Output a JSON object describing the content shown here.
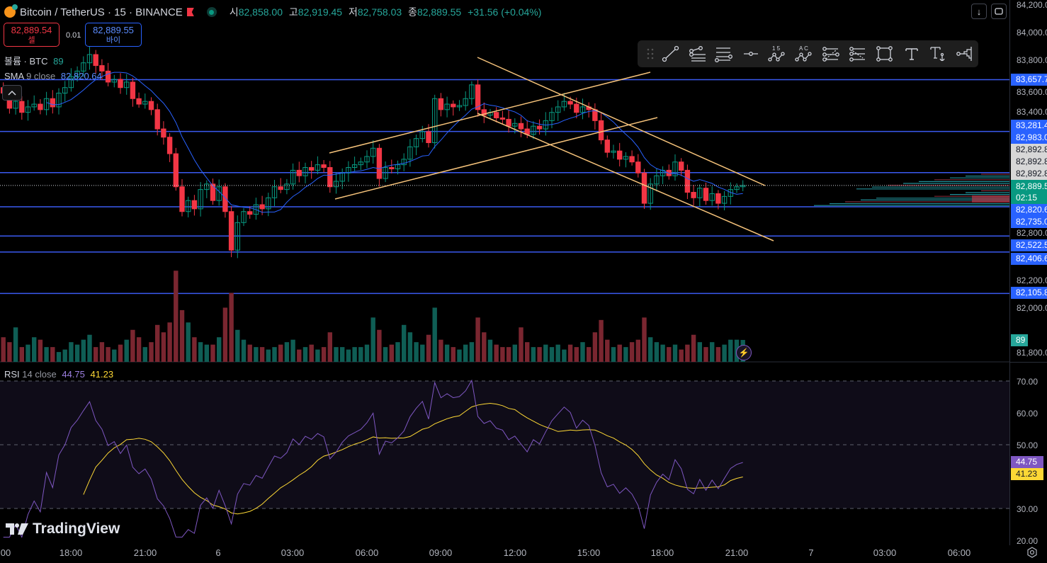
{
  "header": {
    "symbol": "Bitcoin / TetherUS · 15 · BINANCE",
    "ohlc": [
      {
        "k": "시",
        "v": "82,858.00"
      },
      {
        "k": "고",
        "v": "82,919.45"
      },
      {
        "k": "저",
        "v": "82,758.03"
      },
      {
        "k": "종",
        "v": "82,889.55"
      }
    ],
    "change": "+31.56 (+0.04%)"
  },
  "quote": {
    "sell_price": "82,889.54",
    "sell_label": "셀",
    "spread": "0.01",
    "buy_price": "82,889.55",
    "buy_label": "바이"
  },
  "indicators": {
    "volume_label": "볼륨 · BTC",
    "volume_value": "89",
    "sma_name": "SMA",
    "sma_params": "9 close",
    "sma_value": "82,820.64",
    "rsi_name": "RSI",
    "rsi_params": "14 close",
    "rsi_value": "44.75",
    "rsi_ma_value": "41.23"
  },
  "toolbar": {
    "tools": [
      "trend-line",
      "pitchfork",
      "parallel-channel",
      "horizontal-ray",
      "xabcd-pattern-15",
      "abcd-pattern",
      "fib-retracement",
      "fib-extension",
      "rectangle",
      "text",
      "anchored-text",
      "volume-profile"
    ],
    "labels_15": "1 5",
    "labels_ac": "A C"
  },
  "price_axis": {
    "ticks": [
      "84,200.0",
      "84,000.0",
      "83,800.0",
      "83,600.0",
      "83,400.0",
      "82,800.0",
      "82,200.0",
      "82,000.0",
      "81,800.0"
    ],
    "tick_values": [
      84200,
      84000,
      83800,
      83600,
      83400,
      82800,
      82200,
      82000,
      81800
    ],
    "labels": [
      {
        "text": "83,657.7",
        "value": 83657.7,
        "kind": "line"
      },
      {
        "text": "83,281.4",
        "value": 83281.4,
        "kind": "line"
      },
      {
        "text": "82,983.0",
        "value": 82983.0,
        "kind": "line"
      },
      {
        "text": "82,892.8",
        "value": 82892.8,
        "kind": "gray"
      },
      {
        "text": "82,892.8",
        "value": 82892.8,
        "kind": "gray"
      },
      {
        "text": "82,892.8",
        "value": 82892.8,
        "kind": "gray"
      },
      {
        "text": "82,889.5",
        "value": 82889.5,
        "kind": "current"
      },
      {
        "text": "82,820.6",
        "value": 82820.6,
        "kind": "sma"
      },
      {
        "text": "82,735.0",
        "value": 82735.0,
        "kind": "line"
      },
      {
        "text": "82,522.5",
        "value": 82522.5,
        "kind": "line"
      },
      {
        "text": "82,406.6",
        "value": 82406.6,
        "kind": "line"
      },
      {
        "text": "82,105.8",
        "value": 82105.8,
        "kind": "line"
      }
    ],
    "countdown": "02:15",
    "volume_tag": "89"
  },
  "rsi_axis": {
    "ticks": [
      "70.00",
      "60.00",
      "50.00",
      "30.00",
      "20.00"
    ],
    "tick_values": [
      70,
      60,
      50,
      30,
      20
    ],
    "rsi_tag": "44.75",
    "ma_tag": "41.23"
  },
  "time_axis": [
    "00",
    "18:00",
    "21:00",
    "6",
    "03:00",
    "06:00",
    "09:00",
    "12:00",
    "15:00",
    "18:00",
    "21:00",
    "7",
    "03:00",
    "06:00"
  ],
  "brand": "TradingView",
  "colors": {
    "up": "#089981",
    "down": "#f23645",
    "line": "#2962ff",
    "rsi": "#7e57c2",
    "rsi_ma": "#fdd835",
    "drawing": "#f5c27a"
  },
  "chart_data": {
    "type": "candlestick",
    "title": "Bitcoin / TetherUS · 15 · BINANCE",
    "interval": "15m",
    "ylim": [
      81700,
      84250
    ],
    "horizontal_levels": [
      83657.7,
      83281.4,
      82983.0,
      82735.0,
      82522.5,
      82406.6,
      82105.8
    ],
    "close": [
      83600,
      83560,
      83450,
      83500,
      83420,
      83460,
      83480,
      83440,
      83520,
      83460,
      83560,
      83600,
      83680,
      83720,
      83780,
      83840,
      83760,
      83720,
      83640,
      83660,
      83600,
      83640,
      83520,
      83480,
      83500,
      83440,
      83300,
      83240,
      83120,
      82880,
      82700,
      82780,
      82720,
      82860,
      82900,
      82780,
      82880,
      82700,
      82420,
      82620,
      82700,
      82680,
      82750,
      82720,
      82800,
      82880,
      82860,
      82900,
      83000,
      82960,
      83020,
      83000,
      83040,
      83020,
      82880,
      82920,
      82980,
      83020,
      83040,
      83060,
      83100,
      83160,
      82940,
      83020,
      83010,
      83040,
      83080,
      83170,
      83230,
      83280,
      83200,
      83520,
      83440,
      83480,
      83460,
      83470,
      83520,
      83620,
      83440,
      83400,
      83420,
      83380,
      83370,
      83320,
      83340,
      83300,
      83260,
      83320,
      83300,
      83360,
      83420,
      83460,
      83500,
      83480,
      83420,
      83460,
      83440,
      83360,
      83220,
      83130,
      83140,
      83080,
      83100,
      83060,
      82980,
      82760,
      82900,
      82960,
      83000,
      82960,
      83060,
      83000,
      82840,
      82800,
      82870,
      82780,
      82830,
      82760,
      82810,
      82860,
      82880,
      82889.55
    ],
    "volume": [
      130,
      100,
      80,
      140,
      60,
      70,
      100,
      90,
      60,
      60,
      40,
      50,
      80,
      70,
      90,
      110,
      60,
      80,
      60,
      50,
      70,
      90,
      130,
      100,
      60,
      80,
      150,
      120,
      160,
      370,
      210,
      160,
      100,
      80,
      70,
      70,
      100,
      220,
      280,
      130,
      90,
      70,
      60,
      60,
      50,
      60,
      70,
      80,
      90,
      50,
      60,
      70,
      50,
      60,
      120,
      60,
      60,
      50,
      60,
      60,
      70,
      180,
      130,
      60,
      70,
      80,
      150,
      120,
      80,
      70,
      110,
      220,
      90,
      70,
      60,
      50,
      70,
      80,
      180,
      120,
      90,
      70,
      60,
      60,
      70,
      140,
      80,
      60,
      60,
      70,
      60,
      70,
      50,
      70,
      60,
      80,
      60,
      120,
      170,
      90,
      60,
      70,
      60,
      80,
      90,
      180,
      100,
      80,
      70,
      60,
      70,
      50,
      70,
      110,
      80,
      60,
      80,
      60,
      70,
      90,
      90,
      89
    ],
    "rsi_ylim": [
      20,
      72
    ],
    "rsi_levels": [
      70,
      50,
      30
    ]
  }
}
